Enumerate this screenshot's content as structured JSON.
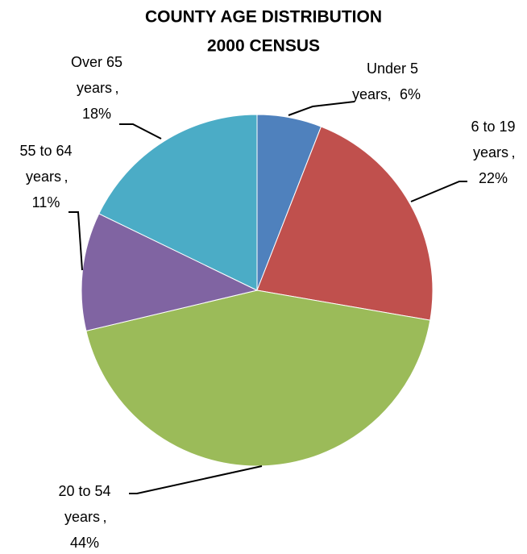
{
  "chart_data": {
    "type": "pie",
    "title_lines": [
      "COUNTY AGE DISTRIBUTION",
      "2000 CENSUS"
    ],
    "categories": [
      "Under 5 years",
      "6 to 19 years",
      "20 to 54 years",
      "55 to 64 years",
      "Over 65 years"
    ],
    "values": [
      6,
      22,
      44,
      11,
      18
    ],
    "value_labels": [
      "6%",
      "22%",
      "44%",
      "11%",
      "18%"
    ],
    "label_separator": ",",
    "colors": [
      "#4f81bd",
      "#c0504d",
      "#9bbb59",
      "#8064a2",
      "#4bacc6"
    ]
  }
}
